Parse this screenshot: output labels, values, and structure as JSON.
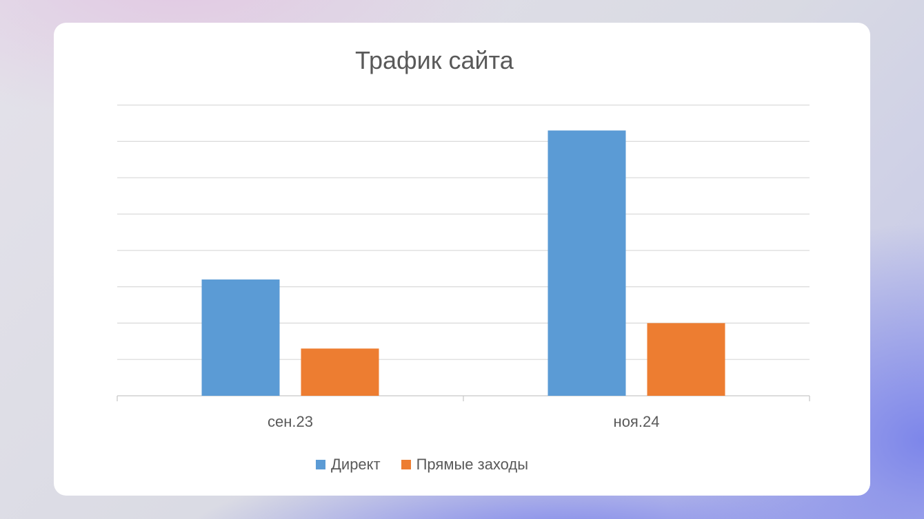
{
  "chart_data": {
    "type": "bar",
    "title": "Трафик сайта",
    "categories": [
      "сен.23",
      "ноя.24"
    ],
    "series": [
      {
        "name": "Директ",
        "color": "#5b9bd5",
        "values": [
          3.2,
          7.3
        ]
      },
      {
        "name": "Прямые заходы",
        "color": "#ed7d31",
        "values": [
          1.3,
          2.0
        ]
      }
    ],
    "ylim": [
      0,
      8
    ],
    "y_gridlines": [
      1,
      2,
      3,
      4,
      5,
      6,
      7,
      8
    ],
    "grid": true,
    "legend_position": "bottom",
    "xlabel": "",
    "ylabel": ""
  }
}
